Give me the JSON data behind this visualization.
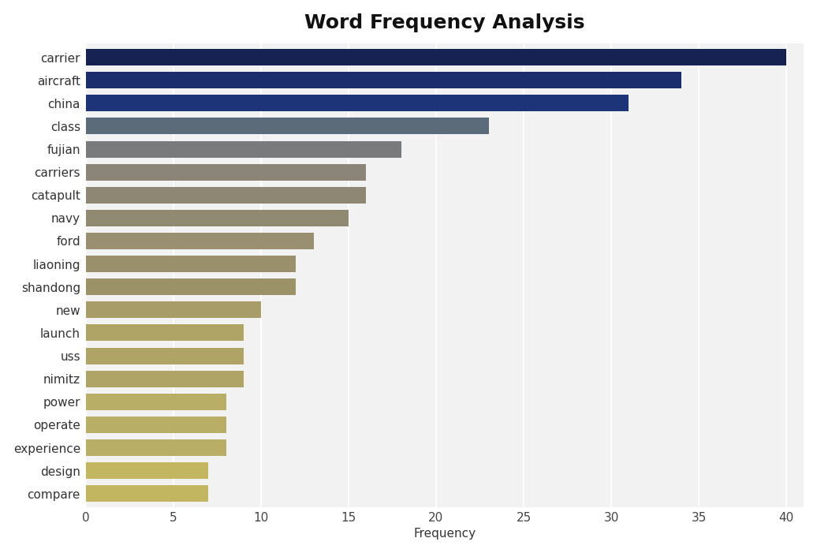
{
  "title": "Word Frequency Analysis",
  "categories": [
    "carrier",
    "aircraft",
    "china",
    "class",
    "fujian",
    "carriers",
    "catapult",
    "navy",
    "ford",
    "liaoning",
    "shandong",
    "new",
    "launch",
    "uss",
    "nimitz",
    "power",
    "operate",
    "experience",
    "design",
    "compare"
  ],
  "values": [
    40,
    34,
    31,
    23,
    18,
    16,
    16,
    15,
    13,
    12,
    12,
    10,
    9,
    9,
    9,
    8,
    8,
    8,
    7,
    7
  ],
  "bar_colors": [
    "#162252",
    "#1b2d6b",
    "#1e3478",
    "#5c6b7a",
    "#797a7c",
    "#8a8578",
    "#8d8774",
    "#908a72",
    "#989070",
    "#9a916c",
    "#9c9268",
    "#a89c68",
    "#afa465",
    "#afa465",
    "#afa465",
    "#b9ae65",
    "#b9ae65",
    "#b9ae65",
    "#c2b760",
    "#c2b760"
  ],
  "xlabel": "Frequency",
  "ylabel": "",
  "xlim": [
    0,
    41
  ],
  "xticks": [
    0,
    5,
    10,
    15,
    20,
    25,
    30,
    35,
    40
  ],
  "plot_bg_color": "#f2f2f2",
  "fig_bg_color": "#ffffff",
  "title_fontsize": 18,
  "label_fontsize": 11,
  "bar_height": 0.72
}
